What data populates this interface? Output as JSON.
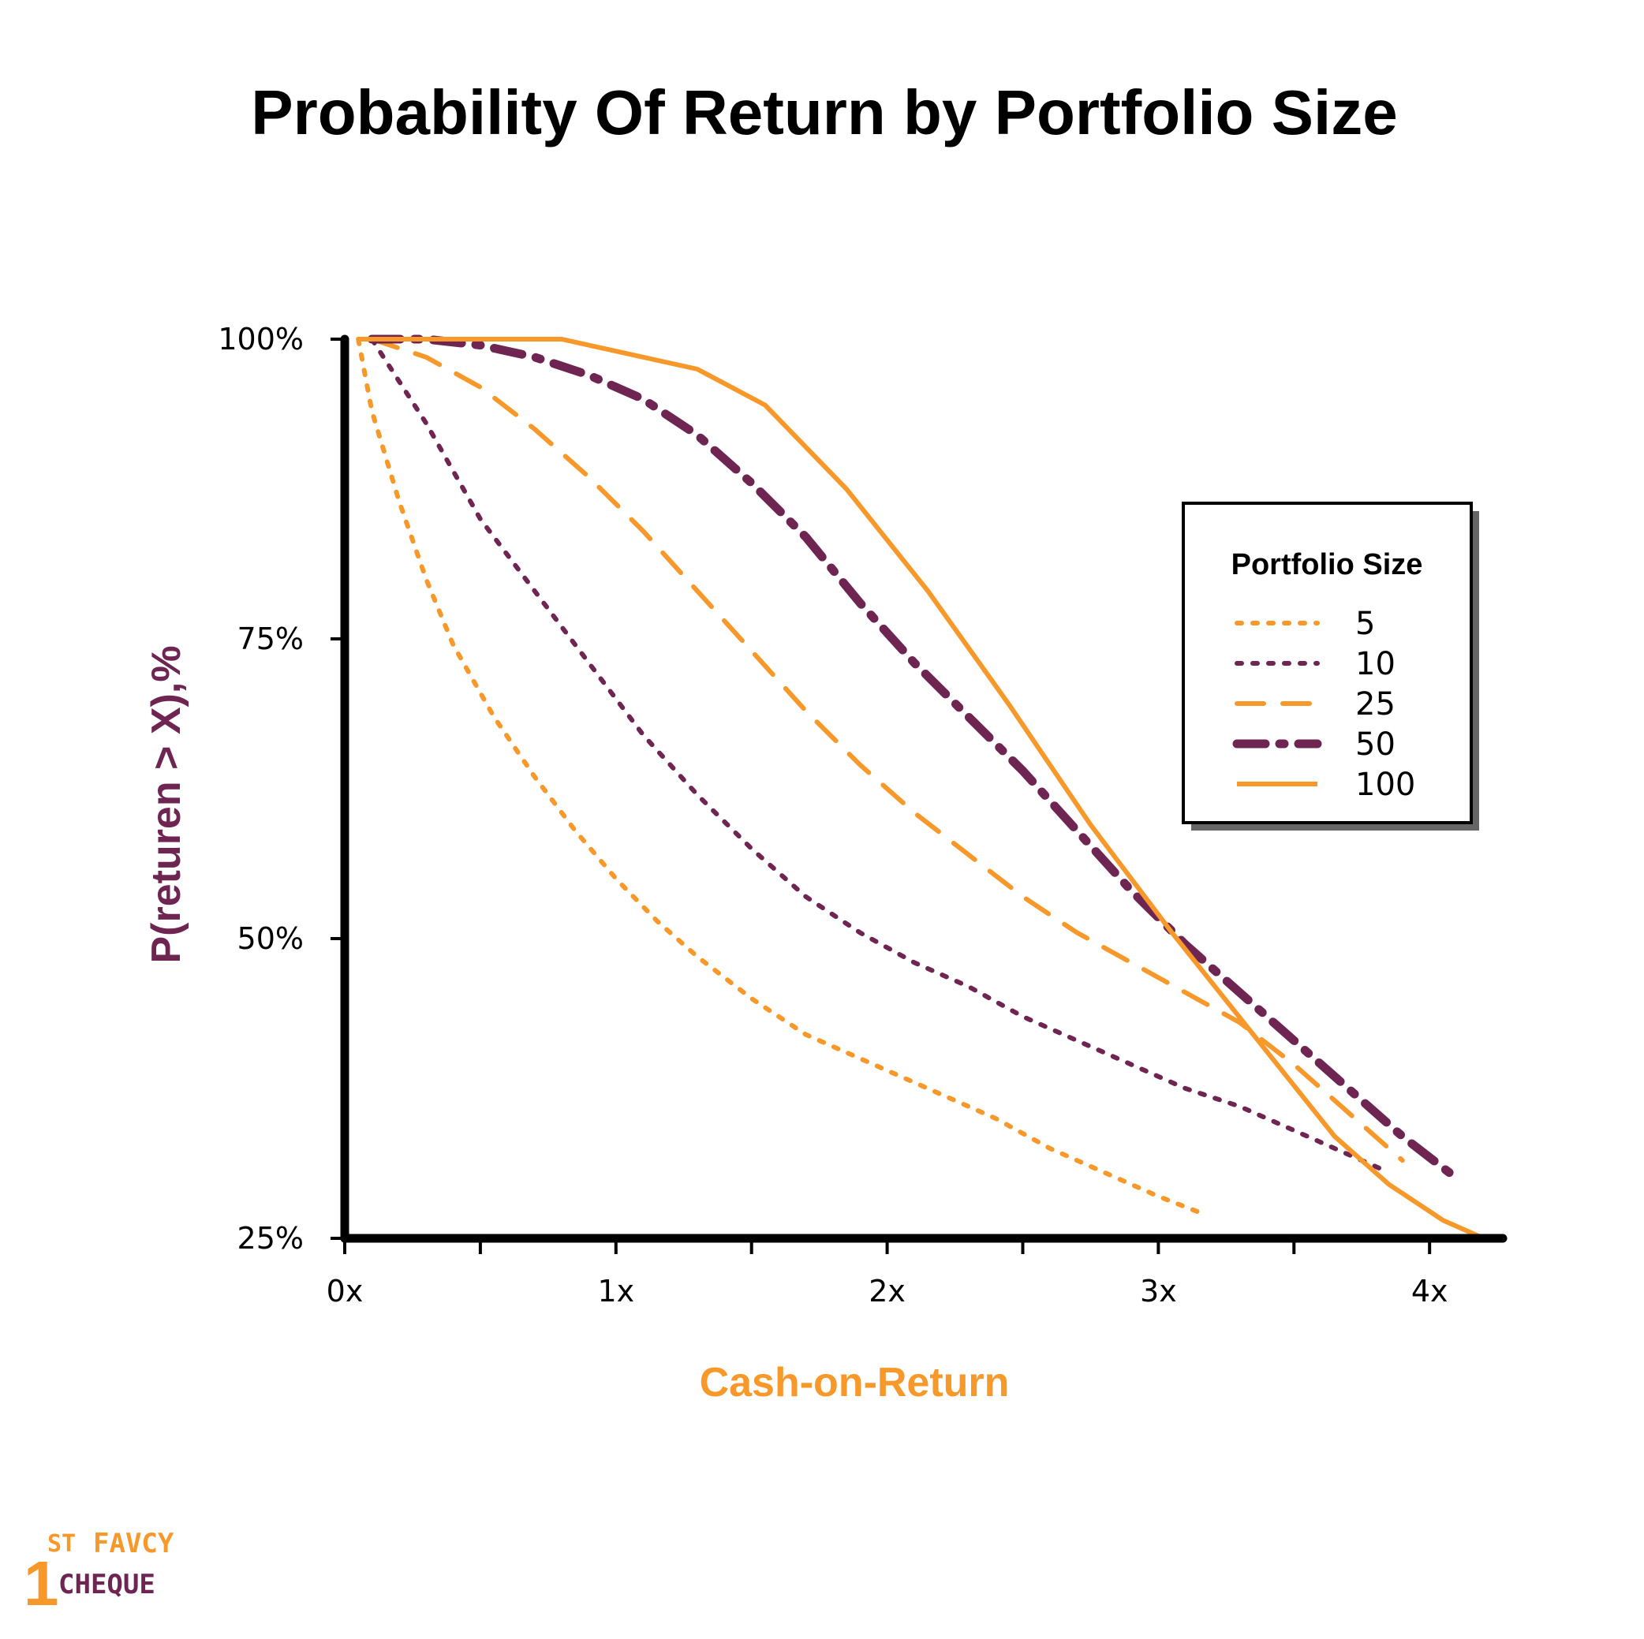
{
  "colors": {
    "orange": "#F7982A",
    "purple": "#6E2552",
    "axis": "#000000"
  },
  "logo": {
    "number": "1",
    "superscript": "ST",
    "line1": "FAVCY",
    "line2": "CHEQUE"
  },
  "chart_data": {
    "type": "line",
    "title": "Probability Of Return by Portfolio Size",
    "xlabel": "Cash-on-Return",
    "ylabel": "P(returen > X),%",
    "xlim": [
      0,
      4.27
    ],
    "ylim": [
      25,
      100
    ],
    "x_ticks": [
      0,
      1,
      2,
      3,
      4
    ],
    "x_tick_labels": [
      "0x",
      "1x",
      "2x",
      "3x",
      "4x"
    ],
    "x_minor_ticks": [
      0.5,
      1.5,
      2.5,
      3.5
    ],
    "y_ticks": [
      25,
      50,
      75,
      100
    ],
    "y_tick_labels": [
      "25%",
      "50%",
      "75%",
      "100%"
    ],
    "grid": false,
    "legend": {
      "title": "Portfolio Size",
      "position": "right"
    },
    "series": [
      {
        "name": "5",
        "color": "#F7982A",
        "style": "dotted",
        "x": [
          0.05,
          0.1,
          0.2,
          0.3,
          0.4,
          0.55,
          0.7,
          0.85,
          1.0,
          1.15,
          1.3,
          1.5,
          1.7,
          1.85,
          2.0,
          2.2,
          2.4,
          2.6,
          2.8,
          3.0,
          3.17
        ],
        "y": [
          100,
          94,
          86.5,
          80,
          74.5,
          68.5,
          63.5,
          59,
          55,
          51.5,
          48.5,
          45,
          42,
          40.5,
          39,
          37,
          35,
          32.5,
          30.5,
          28.5,
          27
        ]
      },
      {
        "name": "10",
        "color": "#6E2552",
        "style": "dotted",
        "x": [
          0.1,
          0.2,
          0.3,
          0.4,
          0.5,
          0.7,
          0.9,
          1.1,
          1.3,
          1.5,
          1.7,
          1.9,
          2.1,
          2.3,
          2.5,
          2.7,
          2.9,
          3.1,
          3.3,
          3.5,
          3.7,
          3.85
        ],
        "y": [
          100,
          96.5,
          93,
          89,
          85,
          79,
          73,
          67,
          62,
          57.5,
          53.5,
          50.5,
          48,
          46,
          43.5,
          41.5,
          39.5,
          37.5,
          36,
          34,
          32,
          30.5
        ]
      },
      {
        "name": "25",
        "color": "#F7982A",
        "style": "dashed",
        "x": [
          0.1,
          0.3,
          0.5,
          0.7,
          0.9,
          1.1,
          1.3,
          1.5,
          1.7,
          1.9,
          2.1,
          2.3,
          2.5,
          2.7,
          2.9,
          3.1,
          3.3,
          3.5,
          3.7,
          3.9
        ],
        "y": [
          100,
          98.5,
          96,
          92.5,
          88.5,
          84,
          79,
          74,
          69,
          64.5,
          60.5,
          57,
          53.5,
          50.5,
          48,
          45.5,
          43,
          39.5,
          35.5,
          31.5
        ]
      },
      {
        "name": "50",
        "color": "#6E2552",
        "style": "dashdot",
        "x": [
          0.1,
          0.3,
          0.5,
          0.7,
          0.9,
          1.1,
          1.3,
          1.5,
          1.7,
          1.9,
          2.1,
          2.3,
          2.5,
          2.7,
          2.9,
          3.1,
          3.3,
          3.5,
          3.7,
          3.9,
          4.1
        ],
        "y": [
          100,
          100,
          99.5,
          98.5,
          97,
          95,
          92,
          88,
          83.5,
          78,
          73,
          68.5,
          64,
          59,
          54,
          49.5,
          45.5,
          41.5,
          37.5,
          33.5,
          30
        ]
      },
      {
        "name": "100",
        "color": "#F7982A",
        "style": "solid",
        "x": [
          0.05,
          0.8,
          1.3,
          1.55,
          1.85,
          2.15,
          2.45,
          2.75,
          3.05,
          3.35,
          3.65,
          3.85,
          4.05,
          4.2
        ],
        "y": [
          100,
          100,
          97.5,
          94.5,
          87.5,
          79,
          69.5,
          59.5,
          50.5,
          42,
          33.5,
          29.5,
          26.5,
          25
        ]
      }
    ]
  }
}
